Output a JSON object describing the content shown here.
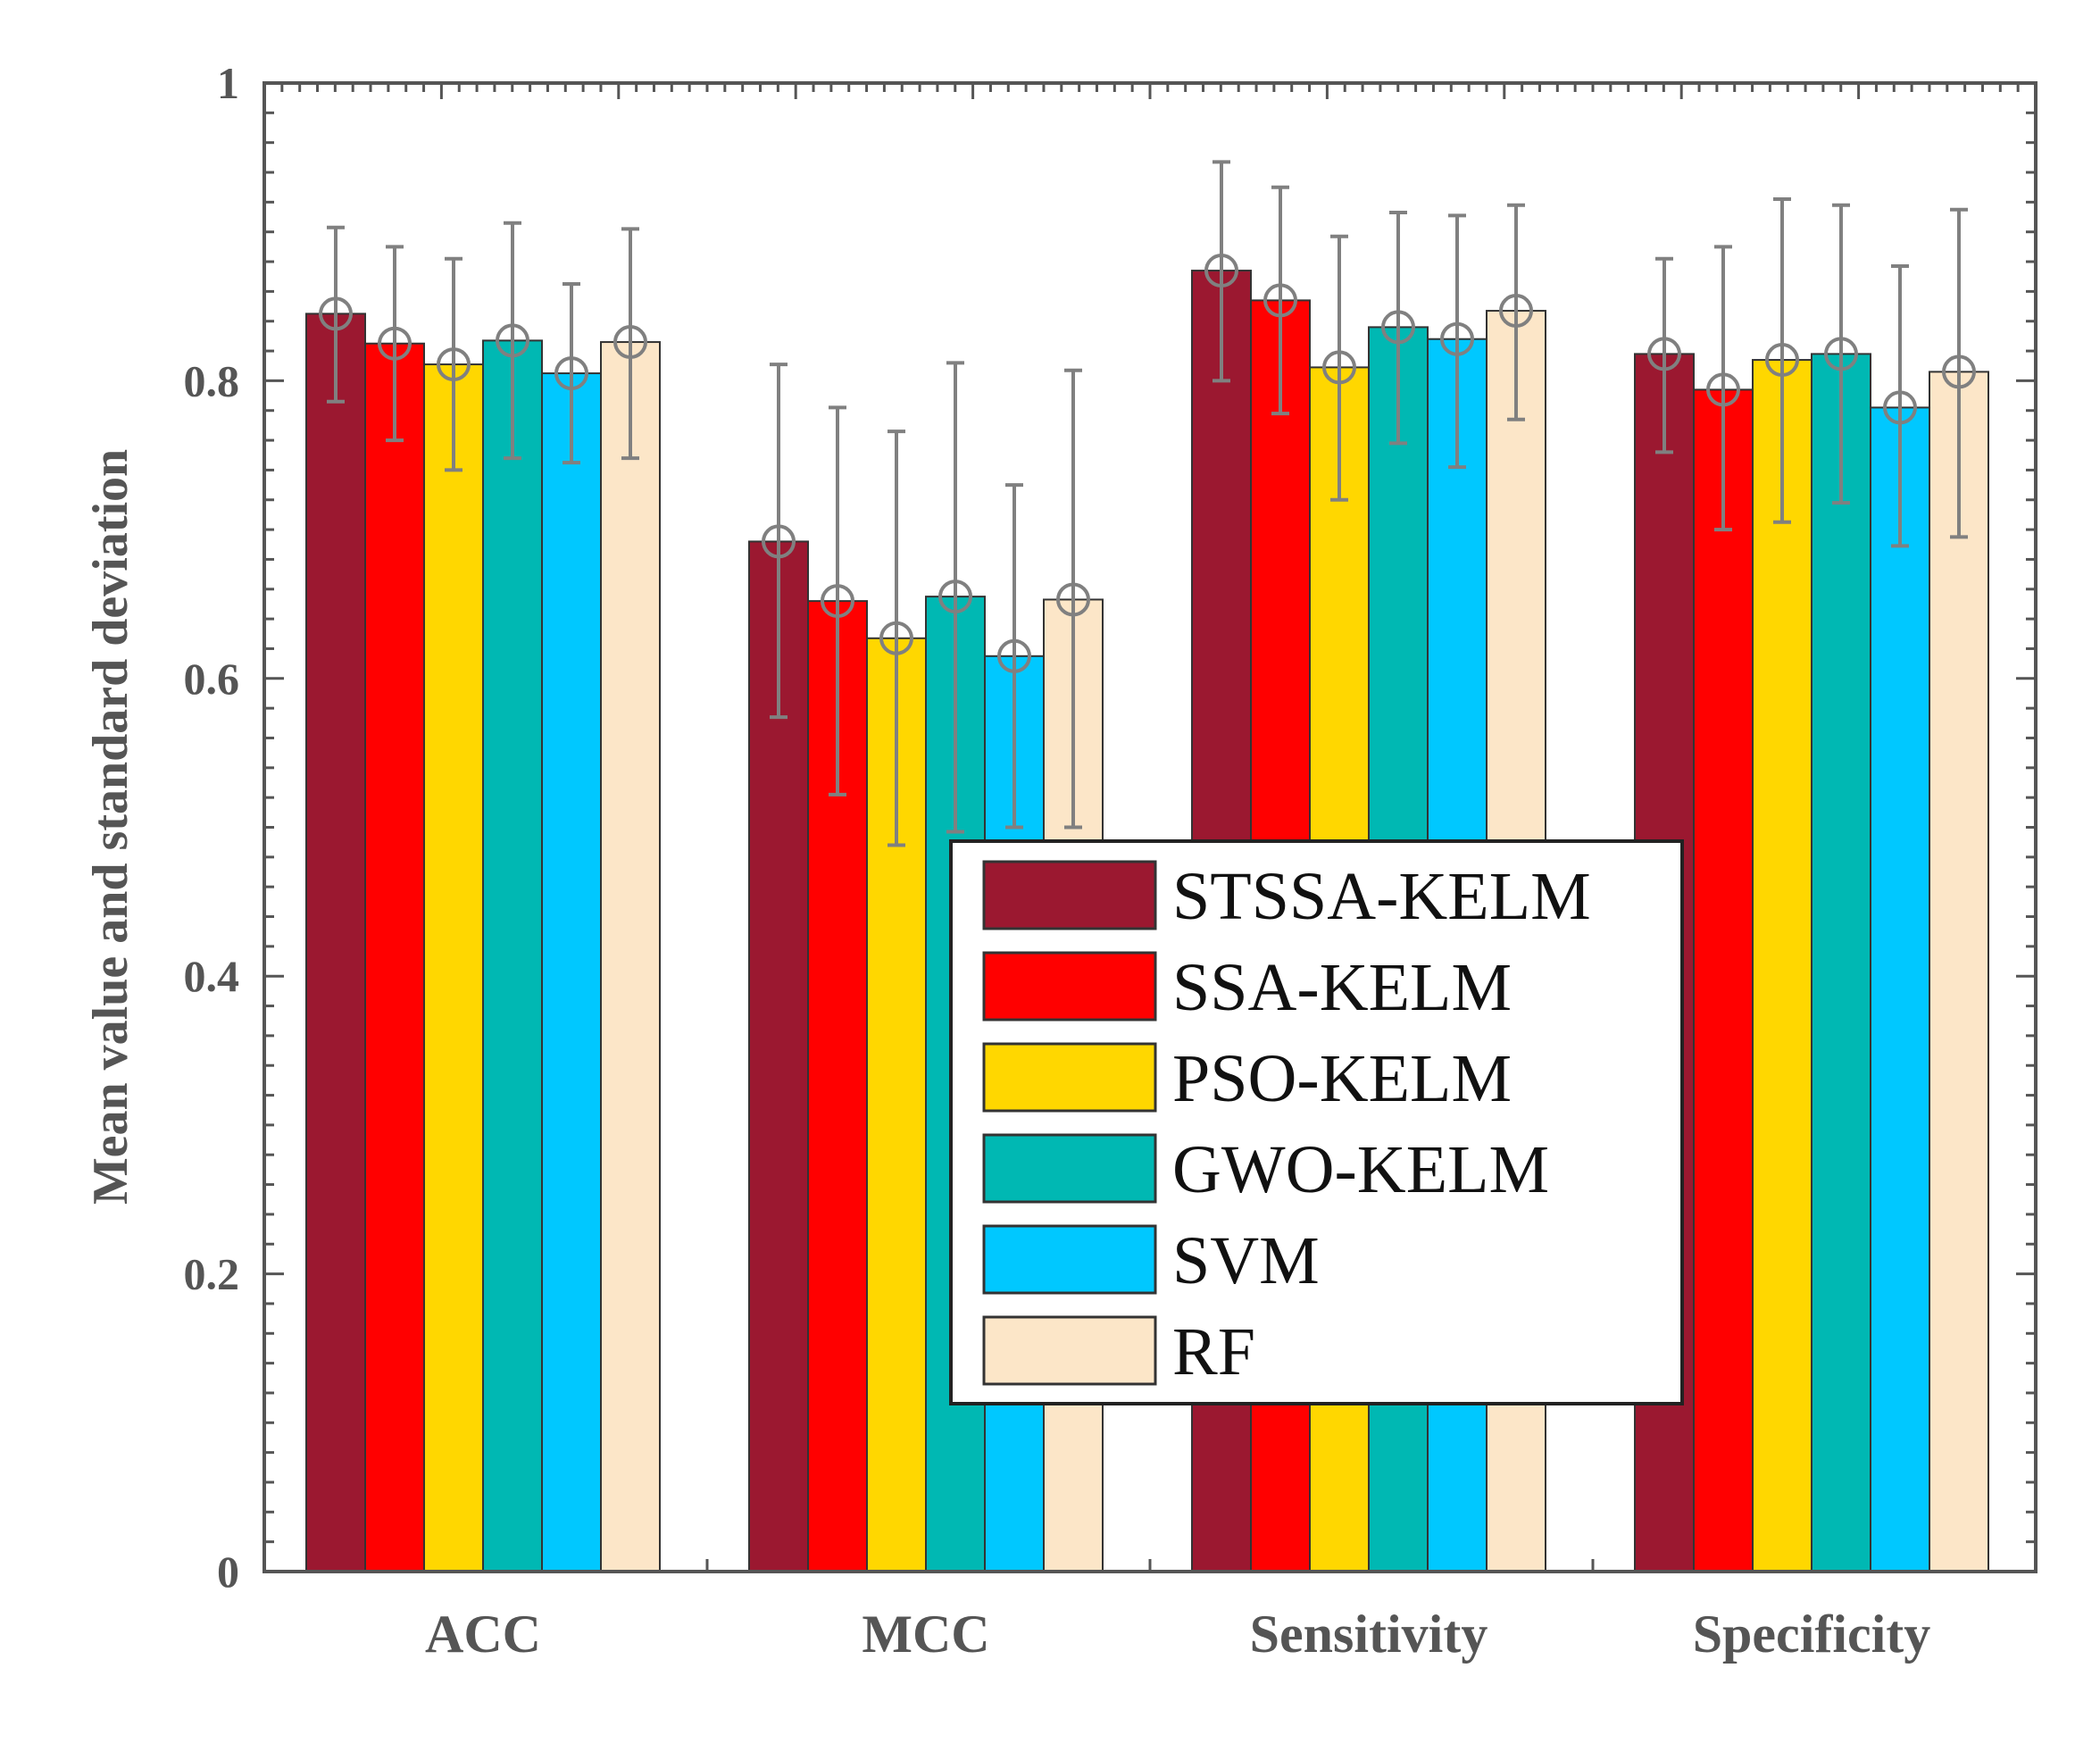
{
  "chart_data": {
    "type": "bar",
    "title": "",
    "xlabel": "",
    "ylabel": "Mean value and standard deviation",
    "ylim": [
      0,
      1
    ],
    "yticks": [
      "0",
      "0.2",
      "0.4",
      "0.6",
      "0.8",
      "1"
    ],
    "categories": [
      "ACC",
      "MCC",
      "Sensitivity",
      "Specificity"
    ],
    "legend_position": "center",
    "error_bar_color": "#808080",
    "series": [
      {
        "name": "STSSA-KELM",
        "color": "#9B1830",
        "values": [
          0.845,
          0.692,
          0.874,
          0.818
        ],
        "lower": [
          0.786,
          0.574,
          0.8,
          0.752
        ],
        "upper": [
          0.903,
          0.811,
          0.947,
          0.882
        ]
      },
      {
        "name": "SSA-KELM",
        "color": "#FF0000",
        "values": [
          0.825,
          0.652,
          0.854,
          0.794
        ],
        "lower": [
          0.76,
          0.522,
          0.778,
          0.7
        ],
        "upper": [
          0.89,
          0.782,
          0.93,
          0.89
        ]
      },
      {
        "name": "PSO-KELM",
        "color": "#FFD700",
        "values": [
          0.811,
          0.627,
          0.809,
          0.814
        ],
        "lower": [
          0.74,
          0.488,
          0.72,
          0.705
        ],
        "upper": [
          0.882,
          0.766,
          0.897,
          0.922
        ]
      },
      {
        "name": "GWO-KELM",
        "color": "#00B8B3",
        "values": [
          0.827,
          0.655,
          0.836,
          0.818
        ],
        "lower": [
          0.748,
          0.497,
          0.758,
          0.718
        ],
        "upper": [
          0.906,
          0.812,
          0.913,
          0.918
        ]
      },
      {
        "name": "SVM",
        "color": "#00C8FF",
        "values": [
          0.805,
          0.615,
          0.828,
          0.782
        ],
        "lower": [
          0.745,
          0.5,
          0.742,
          0.689
        ],
        "upper": [
          0.865,
          0.73,
          0.911,
          0.877
        ]
      },
      {
        "name": "RF",
        "color": "#FCE6C8",
        "values": [
          0.826,
          0.653,
          0.847,
          0.806
        ],
        "lower": [
          0.748,
          0.5,
          0.774,
          0.695
        ],
        "upper": [
          0.902,
          0.807,
          0.918,
          0.915
        ]
      }
    ]
  }
}
